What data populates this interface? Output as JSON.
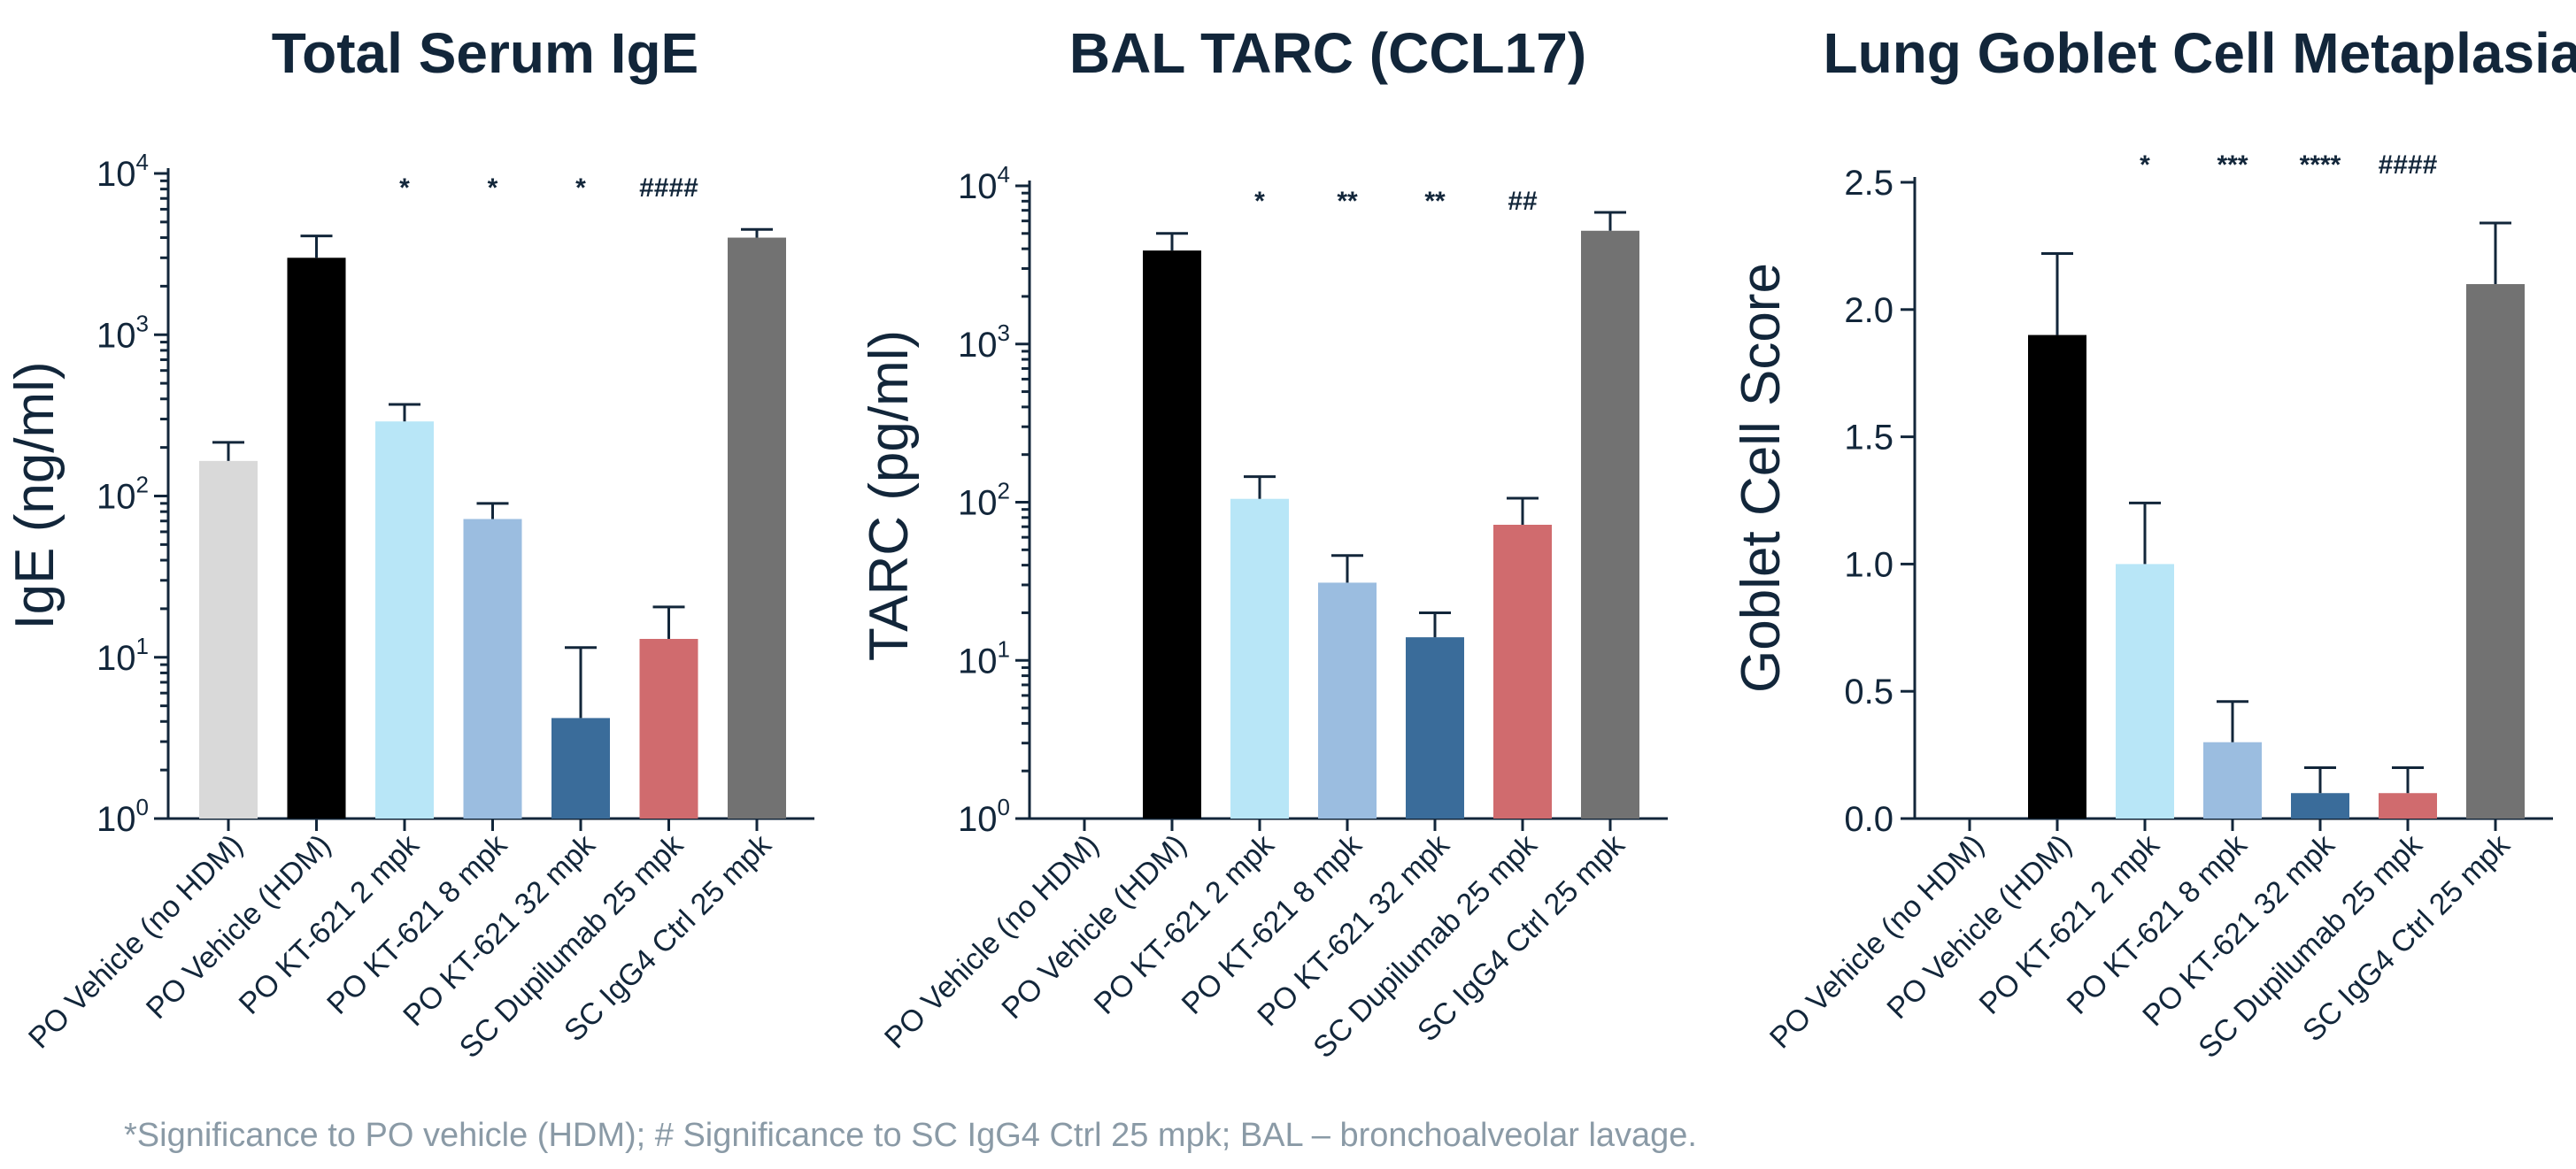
{
  "chart_data": [
    {
      "type": "bar",
      "title": "Total Serum IgE",
      "ylabel": "IgE (ng/ml)",
      "yscale": "log",
      "ylim": [
        1,
        10000
      ],
      "yticks": [
        {
          "base": "10",
          "exp": "0"
        },
        {
          "base": "10",
          "exp": "1"
        },
        {
          "base": "10",
          "exp": "2"
        },
        {
          "base": "10",
          "exp": "3"
        },
        {
          "base": "10",
          "exp": "4"
        }
      ],
      "categories": [
        "PO Vehicle (no HDM)",
        "PO Vehicle (HDM)",
        "PO KT-621 2 mpk",
        "PO KT-621 8 mpk",
        "PO KT-621 32 mpk",
        "SC Dupilumab 25 mpk",
        "SC IgG4 Ctrl 25 mpk"
      ],
      "values": [
        165,
        3000,
        290,
        72,
        4.2,
        13,
        4000
      ],
      "errors": [
        215,
        4100,
        370,
        90,
        11.5,
        20.5,
        4500
      ],
      "significance": [
        "",
        "",
        "*",
        "*",
        "*",
        "####",
        ""
      ],
      "colors": [
        "#d9d9d9",
        "#000000",
        "#b8e6f7",
        "#9bbde0",
        "#3a6c9a",
        "#d06b6e",
        "#727272"
      ]
    },
    {
      "type": "bar",
      "title": "BAL TARC (CCL17)",
      "ylabel": "TARC (pg/ml)",
      "yscale": "log",
      "ylim": [
        1,
        10000
      ],
      "yticks": [
        {
          "base": "10",
          "exp": "0"
        },
        {
          "base": "10",
          "exp": "1"
        },
        {
          "base": "10",
          "exp": "2"
        },
        {
          "base": "10",
          "exp": "3"
        },
        {
          "base": "10",
          "exp": "4"
        }
      ],
      "categories": [
        "PO Vehicle (no HDM)",
        "PO Vehicle (HDM)",
        "PO KT-621 2 mpk",
        "PO KT-621 8 mpk",
        "PO KT-621 32 mpk",
        "SC Dupilumab 25 mpk",
        "SC IgG4 Ctrl 25 mpk"
      ],
      "values": [
        null,
        3900,
        105,
        31,
        14,
        72,
        5200
      ],
      "errors": [
        null,
        5000,
        145,
        46,
        20,
        106,
        6800
      ],
      "significance": [
        "",
        "",
        "*",
        "**",
        "**",
        "##",
        ""
      ],
      "colors": [
        "#d9d9d9",
        "#000000",
        "#b8e6f7",
        "#9bbde0",
        "#3a6c9a",
        "#d06b6e",
        "#727272"
      ]
    },
    {
      "type": "bar",
      "title": "Lung Goblet Cell Metaplasia",
      "ylabel": "Goblet Cell Score",
      "yscale": "linear",
      "ylim": [
        0,
        2.5
      ],
      "yticks": [
        "0.0",
        "0.5",
        "1.0",
        "1.5",
        "2.0",
        "2.5"
      ],
      "categories": [
        "PO Vehicle (no HDM)",
        "PO Vehicle (HDM)",
        "PO KT-621 2 mpk",
        "PO KT-621 8 mpk",
        "PO KT-621 32 mpk",
        "SC Dupilumab 25 mpk",
        "SC IgG4 Ctrl 25 mpk"
      ],
      "values": [
        0,
        1.9,
        1.0,
        0.3,
        0.1,
        0.1,
        2.1
      ],
      "errors": [
        null,
        2.22,
        1.24,
        0.46,
        0.2,
        0.2,
        2.34
      ],
      "significance": [
        "",
        "",
        "*",
        "***",
        "****",
        "####",
        ""
      ],
      "colors": [
        "#d9d9d9",
        "#000000",
        "#b8e6f7",
        "#9bbde0",
        "#3a6c9a",
        "#d06b6e",
        "#727272"
      ]
    }
  ],
  "footnote": "*Significance to PO vehicle (HDM); # Significance to SC IgG4 Ctrl 25 mpk; BAL – bronchoalveolar lavage."
}
